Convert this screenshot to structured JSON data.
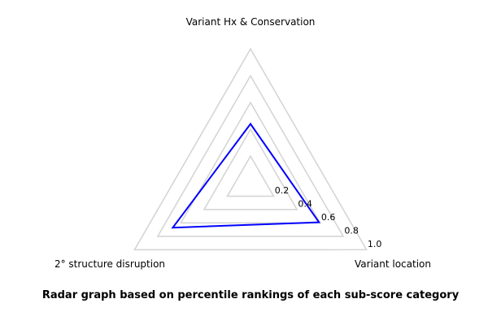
{
  "figure": {
    "caption": "Radar graph based on percentile rankings of each sub-score category"
  },
  "chart_data": {
    "type": "radar",
    "title": "Radar graph based on percentile rankings of each sub-score category",
    "axes": [
      {
        "label": "Variant Hx & Conservation",
        "value": 0.44
      },
      {
        "label": "Variant location",
        "value": 0.59
      },
      {
        "label": "2° structure disruption",
        "value": 0.67
      }
    ],
    "axis_angles_deg": [
      90,
      -30,
      210
    ],
    "range": [
      0,
      1
    ],
    "ticks": [
      0.2,
      0.4,
      0.6,
      0.8,
      1.0
    ],
    "tick_labels": [
      "0.2",
      "0.4",
      "0.6",
      "0.8",
      "1.0"
    ],
    "grid": true,
    "legend": false,
    "series_color": "#0000ff",
    "grid_color": "#d3d3d3",
    "text_color": "#000000"
  }
}
